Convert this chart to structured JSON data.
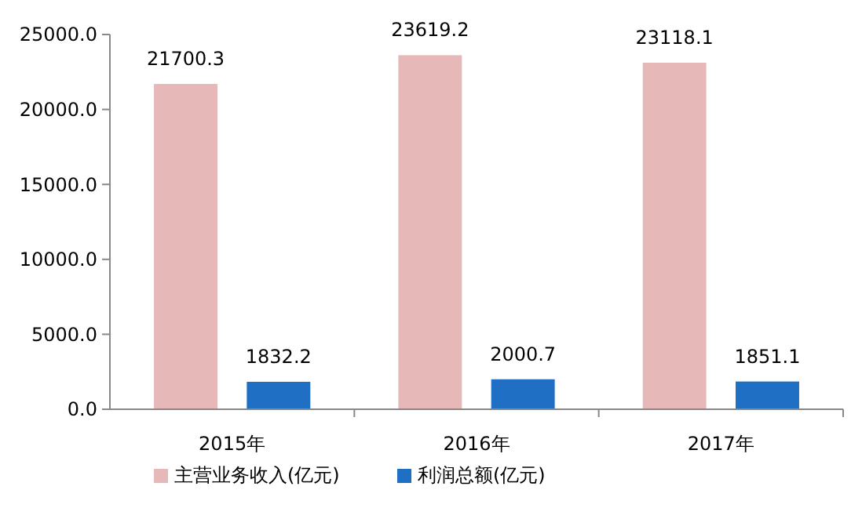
{
  "chart_data": {
    "type": "bar",
    "categories": [
      "2015年",
      "2016年",
      "2017年"
    ],
    "series": [
      {
        "name": "主营业务收入(亿元)",
        "color": "#e6b9b8",
        "values": [
          21700.3,
          23619.2,
          23118.1
        ]
      },
      {
        "name": "利润总额(亿元)",
        "color": "#1f6fc5",
        "values": [
          1832.2,
          2000.7,
          1851.1
        ]
      }
    ],
    "ylim": [
      0,
      25000
    ],
    "yticks": [
      {
        "value": 0,
        "label": "0.0"
      },
      {
        "value": 5000,
        "label": "5000.0"
      },
      {
        "value": 10000,
        "label": "10000.0"
      },
      {
        "value": 15000,
        "label": "15000.0"
      },
      {
        "value": 20000,
        "label": "20000.0"
      },
      {
        "value": 25000,
        "label": "25000.0"
      }
    ],
    "data_labels": true,
    "grid": false,
    "legend": "bottom"
  }
}
